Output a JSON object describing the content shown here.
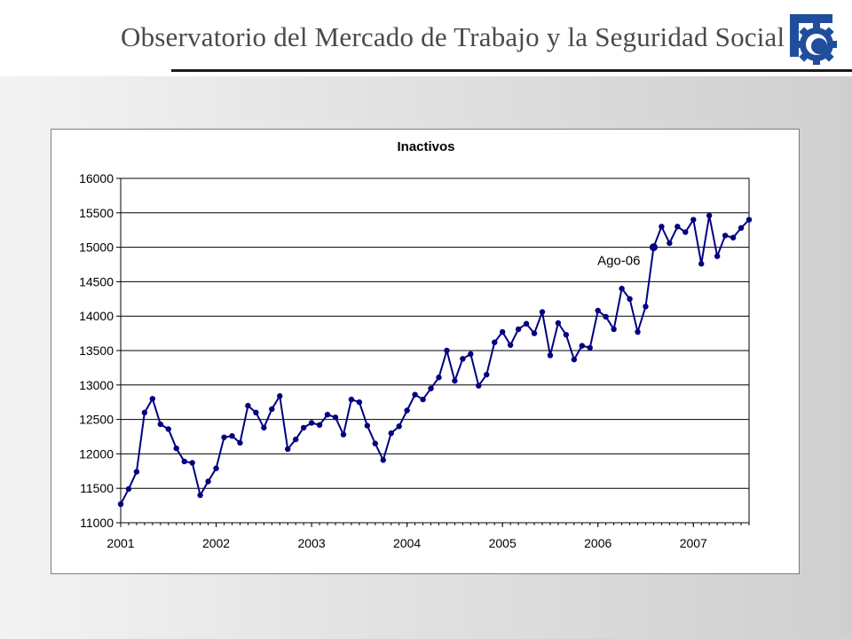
{
  "header": {
    "title": "Observatorio del Mercado de Trabajo y la Seguridad Social",
    "logo_icon": "gear-icon",
    "logo_color": "#1f4e9c"
  },
  "chart_data": {
    "type": "line",
    "title": "Inactivos",
    "xlabel": "",
    "ylabel": "",
    "ylim": [
      11000,
      16000
    ],
    "yticks": [
      11000,
      11500,
      12000,
      12500,
      13000,
      13500,
      14000,
      14500,
      15000,
      15500,
      16000
    ],
    "xticks": [
      "2001",
      "2002",
      "2003",
      "2004",
      "2005",
      "2006",
      "2007"
    ],
    "grid": "horizontal",
    "legend": "none",
    "series_color": "#000080",
    "start": "2001-01",
    "frequency": "monthly",
    "values": [
      11270,
      11490,
      11740,
      12600,
      12800,
      12430,
      12360,
      12080,
      11890,
      11870,
      11400,
      11600,
      11790,
      12240,
      12260,
      12160,
      12700,
      12600,
      12380,
      12650,
      12840,
      12070,
      12210,
      12380,
      12450,
      12420,
      12570,
      12530,
      12280,
      12790,
      12750,
      12410,
      12150,
      11910,
      12300,
      12400,
      12630,
      12860,
      12790,
      12950,
      13110,
      13500,
      13060,
      13380,
      13450,
      12990,
      13150,
      13620,
      13770,
      13580,
      13810,
      13890,
      13750,
      14060,
      13430,
      13900,
      13730,
      13370,
      13570,
      13540,
      14080,
      13990,
      13810,
      14400,
      14250,
      13770,
      14140,
      15000,
      15300,
      15060,
      15300,
      15220,
      15400,
      14760,
      15460,
      14870,
      15170,
      15140,
      15280,
      15400
    ],
    "annotations": [
      {
        "text": "Ago-06",
        "x": "2006-08",
        "y": 15000
      }
    ]
  }
}
